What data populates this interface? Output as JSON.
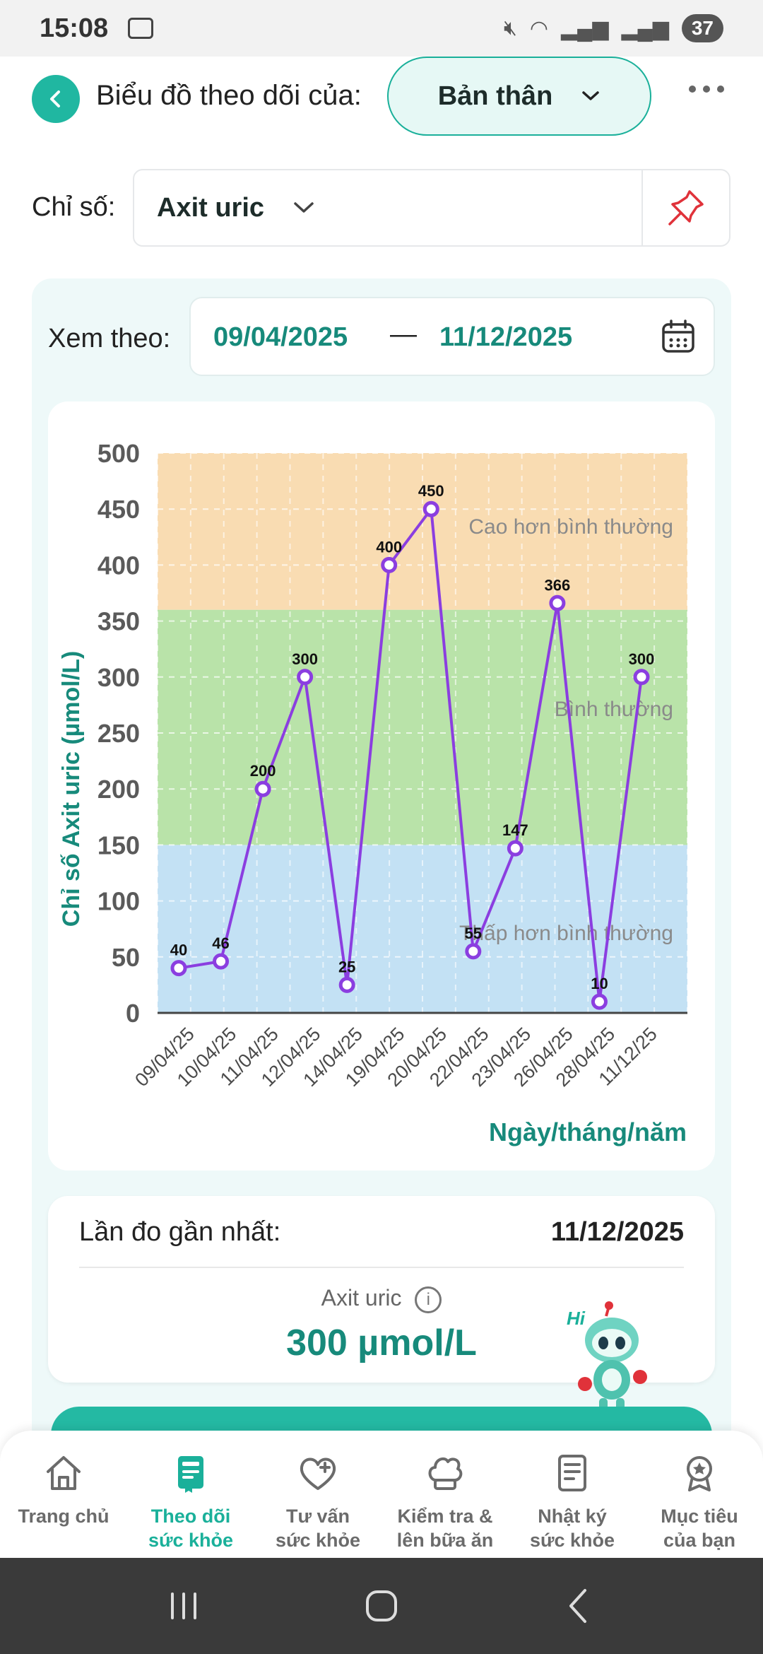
{
  "status_bar": {
    "time": "15:08",
    "battery": "37"
  },
  "header": {
    "title": "Biểu đồ theo dõi của:",
    "profile": "Bản thân"
  },
  "metric": {
    "label": "Chỉ số:",
    "value": "Axit uric"
  },
  "range": {
    "label": "Xem theo:",
    "from": "09/04/2025",
    "separator": "—",
    "to": "11/12/2025"
  },
  "colors": {
    "accent": "#1ab09a",
    "line": "#8b3ee0",
    "band_high": "#f9dcb2",
    "band_normal": "#b9e3a9",
    "band_low": "#c3e1f4"
  },
  "chart_data": {
    "type": "line",
    "categories": [
      "09/04/25",
      "10/04/25",
      "11/04/25",
      "12/04/25",
      "14/04/25",
      "19/04/25",
      "20/04/25",
      "22/04/25",
      "23/04/25",
      "26/04/25",
      "28/04/25",
      "11/12/25"
    ],
    "values": [
      40,
      46,
      200,
      300,
      25,
      400,
      450,
      55,
      147,
      366,
      10,
      300
    ],
    "ylabel": "Chỉ số Axit uric (µmol/L)",
    "xlabel": "Ngày/tháng/năm",
    "ylim": [
      0,
      500
    ],
    "yticks": [
      0,
      50,
      100,
      150,
      200,
      250,
      300,
      350,
      400,
      450,
      500
    ],
    "grid": true,
    "bands": [
      {
        "label": "Cao hơn bình thường",
        "from": 360,
        "to": 500
      },
      {
        "label": "Bình thường",
        "from": 150,
        "to": 360
      },
      {
        "label": "Thấp hơn bình thường",
        "from": 0,
        "to": 150
      }
    ]
  },
  "last_measurement": {
    "label": "Lần đo gần nhất:",
    "date": "11/12/2025",
    "metric": "Axit uric",
    "value": "300 µmol/L"
  },
  "mascot": {
    "greeting": "Hi"
  },
  "bottom_nav": {
    "items": [
      {
        "label": "Trang chủ",
        "icon": "home-icon",
        "active": false
      },
      {
        "label": "Theo dõi\nsức khỏe",
        "icon": "health-book-icon",
        "active": true
      },
      {
        "label": "Tư vấn\nsức khỏe",
        "icon": "heart-plus-icon",
        "active": false
      },
      {
        "label": "Kiểm tra &\nlên bữa ăn",
        "icon": "chef-hat-icon",
        "active": false
      },
      {
        "label": "Nhật ký\nsức khỏe",
        "icon": "journal-icon",
        "active": false
      },
      {
        "label": "Mục tiêu\ncủa bạn",
        "icon": "goal-badge-icon",
        "active": false
      }
    ]
  }
}
